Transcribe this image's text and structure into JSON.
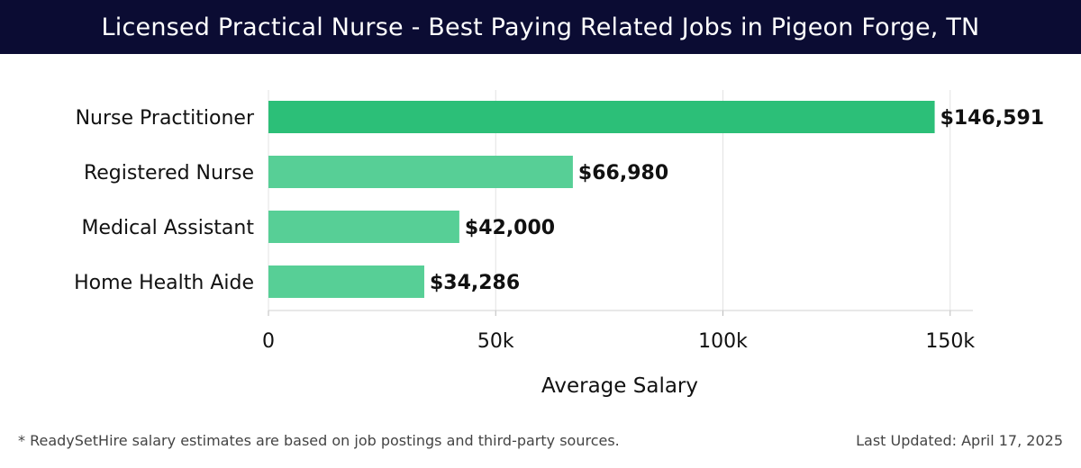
{
  "header": {
    "title": "Licensed Practical Nurse - Best Paying Related Jobs in Pigeon Forge, TN"
  },
  "chart_data": {
    "type": "bar",
    "orientation": "horizontal",
    "categories": [
      "Nurse Practitioner",
      "Registered Nurse",
      "Medical Assistant",
      "Home Health Aide"
    ],
    "values": [
      146591,
      66980,
      42000,
      34286
    ],
    "value_labels": [
      "$146,591",
      "$66,980",
      "$42,000",
      "$34,286"
    ],
    "xlabel": "Average Salary",
    "ylabel": "",
    "xlim": [
      0,
      155000
    ],
    "x_ticks": [
      0,
      50000,
      100000,
      150000
    ],
    "x_tick_labels": [
      "0",
      "50k",
      "100k",
      "150k"
    ],
    "grid": true,
    "legend": "none",
    "colors": {
      "highlight": "#2cbf78",
      "bar": "#57cf96",
      "grid": "#e3e3e3"
    }
  },
  "footer": {
    "note": "* ReadySetHire salary estimates are based on job postings and third-party sources.",
    "updated": "Last Updated: April 17, 2025"
  }
}
